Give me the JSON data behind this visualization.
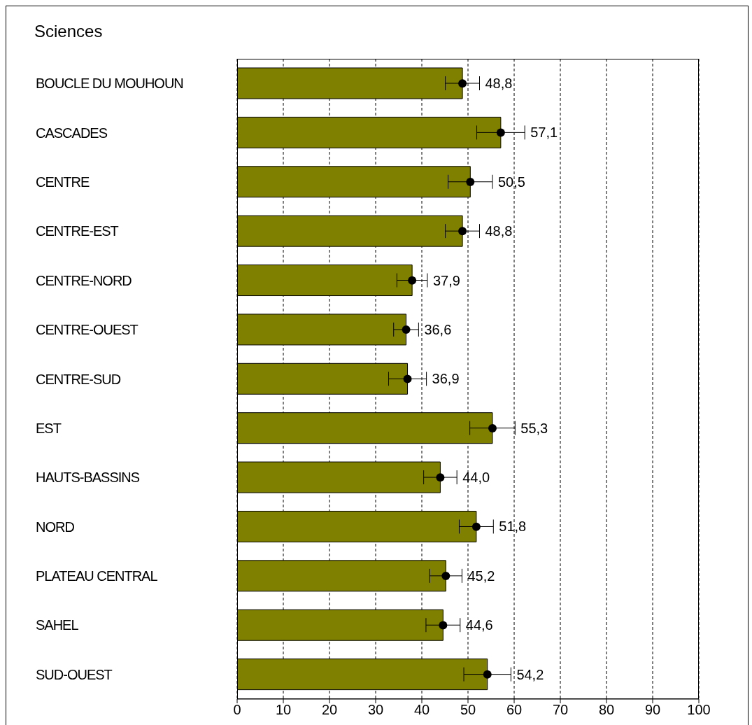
{
  "chart_data": {
    "type": "bar",
    "title": "Sciences",
    "orientation": "horizontal",
    "categories": [
      "BOUCLE DU MOUHOUN",
      "CASCADES",
      "CENTRE",
      "CENTRE-EST",
      "CENTRE-NORD",
      "CENTRE-OUEST",
      "CENTRE-SUD",
      "EST",
      "HAUTS-BASSINS",
      "NORD",
      "PLATEAU CENTRAL",
      "SAHEL",
      "SUD-OUEST"
    ],
    "series": [
      {
        "color": "#808000",
        "values": [
          48.8,
          57.1,
          50.5,
          48.8,
          37.9,
          36.6,
          36.9,
          55.3,
          44.0,
          51.8,
          45.2,
          44.6,
          54.2
        ],
        "errors": [
          3.7,
          5.2,
          4.8,
          3.7,
          3.3,
          2.7,
          4.1,
          4.9,
          3.6,
          3.7,
          3.5,
          3.7,
          5.1
        ],
        "value_labels": [
          "48,8",
          "57,1",
          "50,5",
          "48,8",
          "37,9",
          "36,6",
          "36,9",
          "55,3",
          "44,0",
          "51,8",
          "45,2",
          "44,6",
          "54,2"
        ]
      },
      {
        "type": "scatter",
        "color": "#000000",
        "marker": "circle",
        "x": [
          "BOUCLE DU MOUHOUN",
          "CASCADES",
          "CENTRE",
          "CENTRE-EST",
          "CENTRE-NORD",
          "CENTRE-OUEST",
          "CENTRE-SUD",
          "EST",
          "HAUTS-BASSINS",
          "NORD",
          "PLATEAU CENTRAL",
          "SAHEL",
          "SUD-OUEST"
        ],
        "values": [
          48.8,
          57.1,
          50.5,
          48.8,
          37.9,
          36.6,
          36.9,
          55.3,
          44.0,
          51.8,
          45.2,
          44.6,
          54.2
        ]
      }
    ],
    "xlim": [
      0,
      100
    ],
    "xticks": [
      0,
      10,
      20,
      30,
      40,
      50,
      60,
      70,
      80,
      90,
      100
    ],
    "grid": "x",
    "legend": false
  }
}
